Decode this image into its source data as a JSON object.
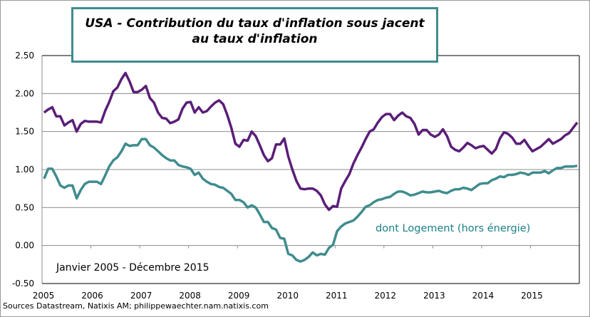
{
  "chart_data": {
    "type": "line",
    "title": [
      "USA - Contribution du taux d'inflation sous jacent",
      "au taux d'inflation"
    ],
    "xlabel": "",
    "ylabel": "",
    "x_start": "2005-01",
    "x_end": "2015-12",
    "frequency": "monthly",
    "x_tick_labels": [
      "2005",
      "2006",
      "2007",
      "2008",
      "2009",
      "2010",
      "2011",
      "2012",
      "2013",
      "2014",
      "2015"
    ],
    "y_tick_labels": [
      "2.50",
      "2.00",
      "1.50",
      "1.00",
      "0.50",
      "0.00",
      "-0.50"
    ],
    "ylim": [
      -0.5,
      2.5
    ],
    "grid": "horizontal",
    "series": [
      {
        "color": "#5a1e78",
        "values": [
          1.75,
          1.79,
          1.82,
          1.7,
          1.7,
          1.58,
          1.62,
          1.65,
          1.5,
          1.6,
          1.64,
          1.63,
          1.63,
          1.63,
          1.62,
          1.77,
          1.89,
          2.03,
          2.08,
          2.19,
          2.27,
          2.16,
          2.02,
          2.02,
          2.05,
          2.1,
          1.94,
          1.88,
          1.75,
          1.68,
          1.67,
          1.61,
          1.63,
          1.66,
          1.8,
          1.88,
          1.89,
          1.75,
          1.82,
          1.75,
          1.77,
          1.83,
          1.88,
          1.91,
          1.86,
          1.72,
          1.55,
          1.34,
          1.3,
          1.39,
          1.38,
          1.5,
          1.44,
          1.32,
          1.19,
          1.11,
          1.15,
          1.33,
          1.33,
          1.41,
          1.17,
          1.0,
          0.85,
          0.75,
          0.74,
          0.75,
          0.75,
          0.72,
          0.66,
          0.54,
          0.47,
          0.52,
          0.51,
          0.75,
          0.85,
          0.94,
          1.08,
          1.19,
          1.29,
          1.4,
          1.5,
          1.53,
          1.62,
          1.69,
          1.73,
          1.73,
          1.65,
          1.71,
          1.75,
          1.7,
          1.68,
          1.6,
          1.46,
          1.52,
          1.52,
          1.46,
          1.43,
          1.46,
          1.53,
          1.44,
          1.3,
          1.26,
          1.24,
          1.29,
          1.35,
          1.32,
          1.28,
          1.3,
          1.31,
          1.26,
          1.21,
          1.27,
          1.41,
          1.49,
          1.47,
          1.42,
          1.34,
          1.34,
          1.39,
          1.31,
          1.24,
          1.27,
          1.3,
          1.35,
          1.4,
          1.34,
          1.37,
          1.4,
          1.45,
          1.48,
          1.55,
          1.62
        ]
      },
      {
        "name": "dont Logement (hors énergie)",
        "color": "#3f8c8e",
        "values": [
          0.88,
          1.01,
          1.01,
          0.91,
          0.79,
          0.76,
          0.79,
          0.79,
          0.62,
          0.73,
          0.81,
          0.84,
          0.84,
          0.84,
          0.81,
          0.92,
          1.04,
          1.12,
          1.16,
          1.24,
          1.34,
          1.31,
          1.32,
          1.32,
          1.4,
          1.4,
          1.32,
          1.29,
          1.24,
          1.19,
          1.15,
          1.12,
          1.12,
          1.06,
          1.04,
          1.03,
          1.01,
          0.93,
          0.96,
          0.88,
          0.84,
          0.81,
          0.8,
          0.77,
          0.76,
          0.72,
          0.68,
          0.6,
          0.6,
          0.57,
          0.5,
          0.53,
          0.5,
          0.41,
          0.31,
          0.31,
          0.23,
          0.21,
          0.1,
          0.09,
          -0.11,
          -0.13,
          -0.19,
          -0.21,
          -0.19,
          -0.15,
          -0.09,
          -0.13,
          -0.11,
          -0.12,
          -0.03,
          0.01,
          0.19,
          0.25,
          0.29,
          0.31,
          0.33,
          0.38,
          0.44,
          0.51,
          0.53,
          0.57,
          0.6,
          0.61,
          0.63,
          0.64,
          0.68,
          0.71,
          0.71,
          0.69,
          0.66,
          0.67,
          0.69,
          0.71,
          0.7,
          0.7,
          0.71,
          0.72,
          0.7,
          0.69,
          0.72,
          0.74,
          0.74,
          0.76,
          0.75,
          0.73,
          0.77,
          0.81,
          0.82,
          0.82,
          0.86,
          0.88,
          0.91,
          0.9,
          0.93,
          0.93,
          0.94,
          0.96,
          0.95,
          0.93,
          0.96,
          0.96,
          0.96,
          0.98,
          0.95,
          0.99,
          1.02,
          1.02,
          1.04,
          1.04,
          1.04,
          1.05
        ]
      }
    ],
    "annotations": [
      "Janvier 2005 - Décembre 2015"
    ]
  },
  "source": "Sources Datastream, Natixis AM; philippewaechter.nam.natixis.com"
}
